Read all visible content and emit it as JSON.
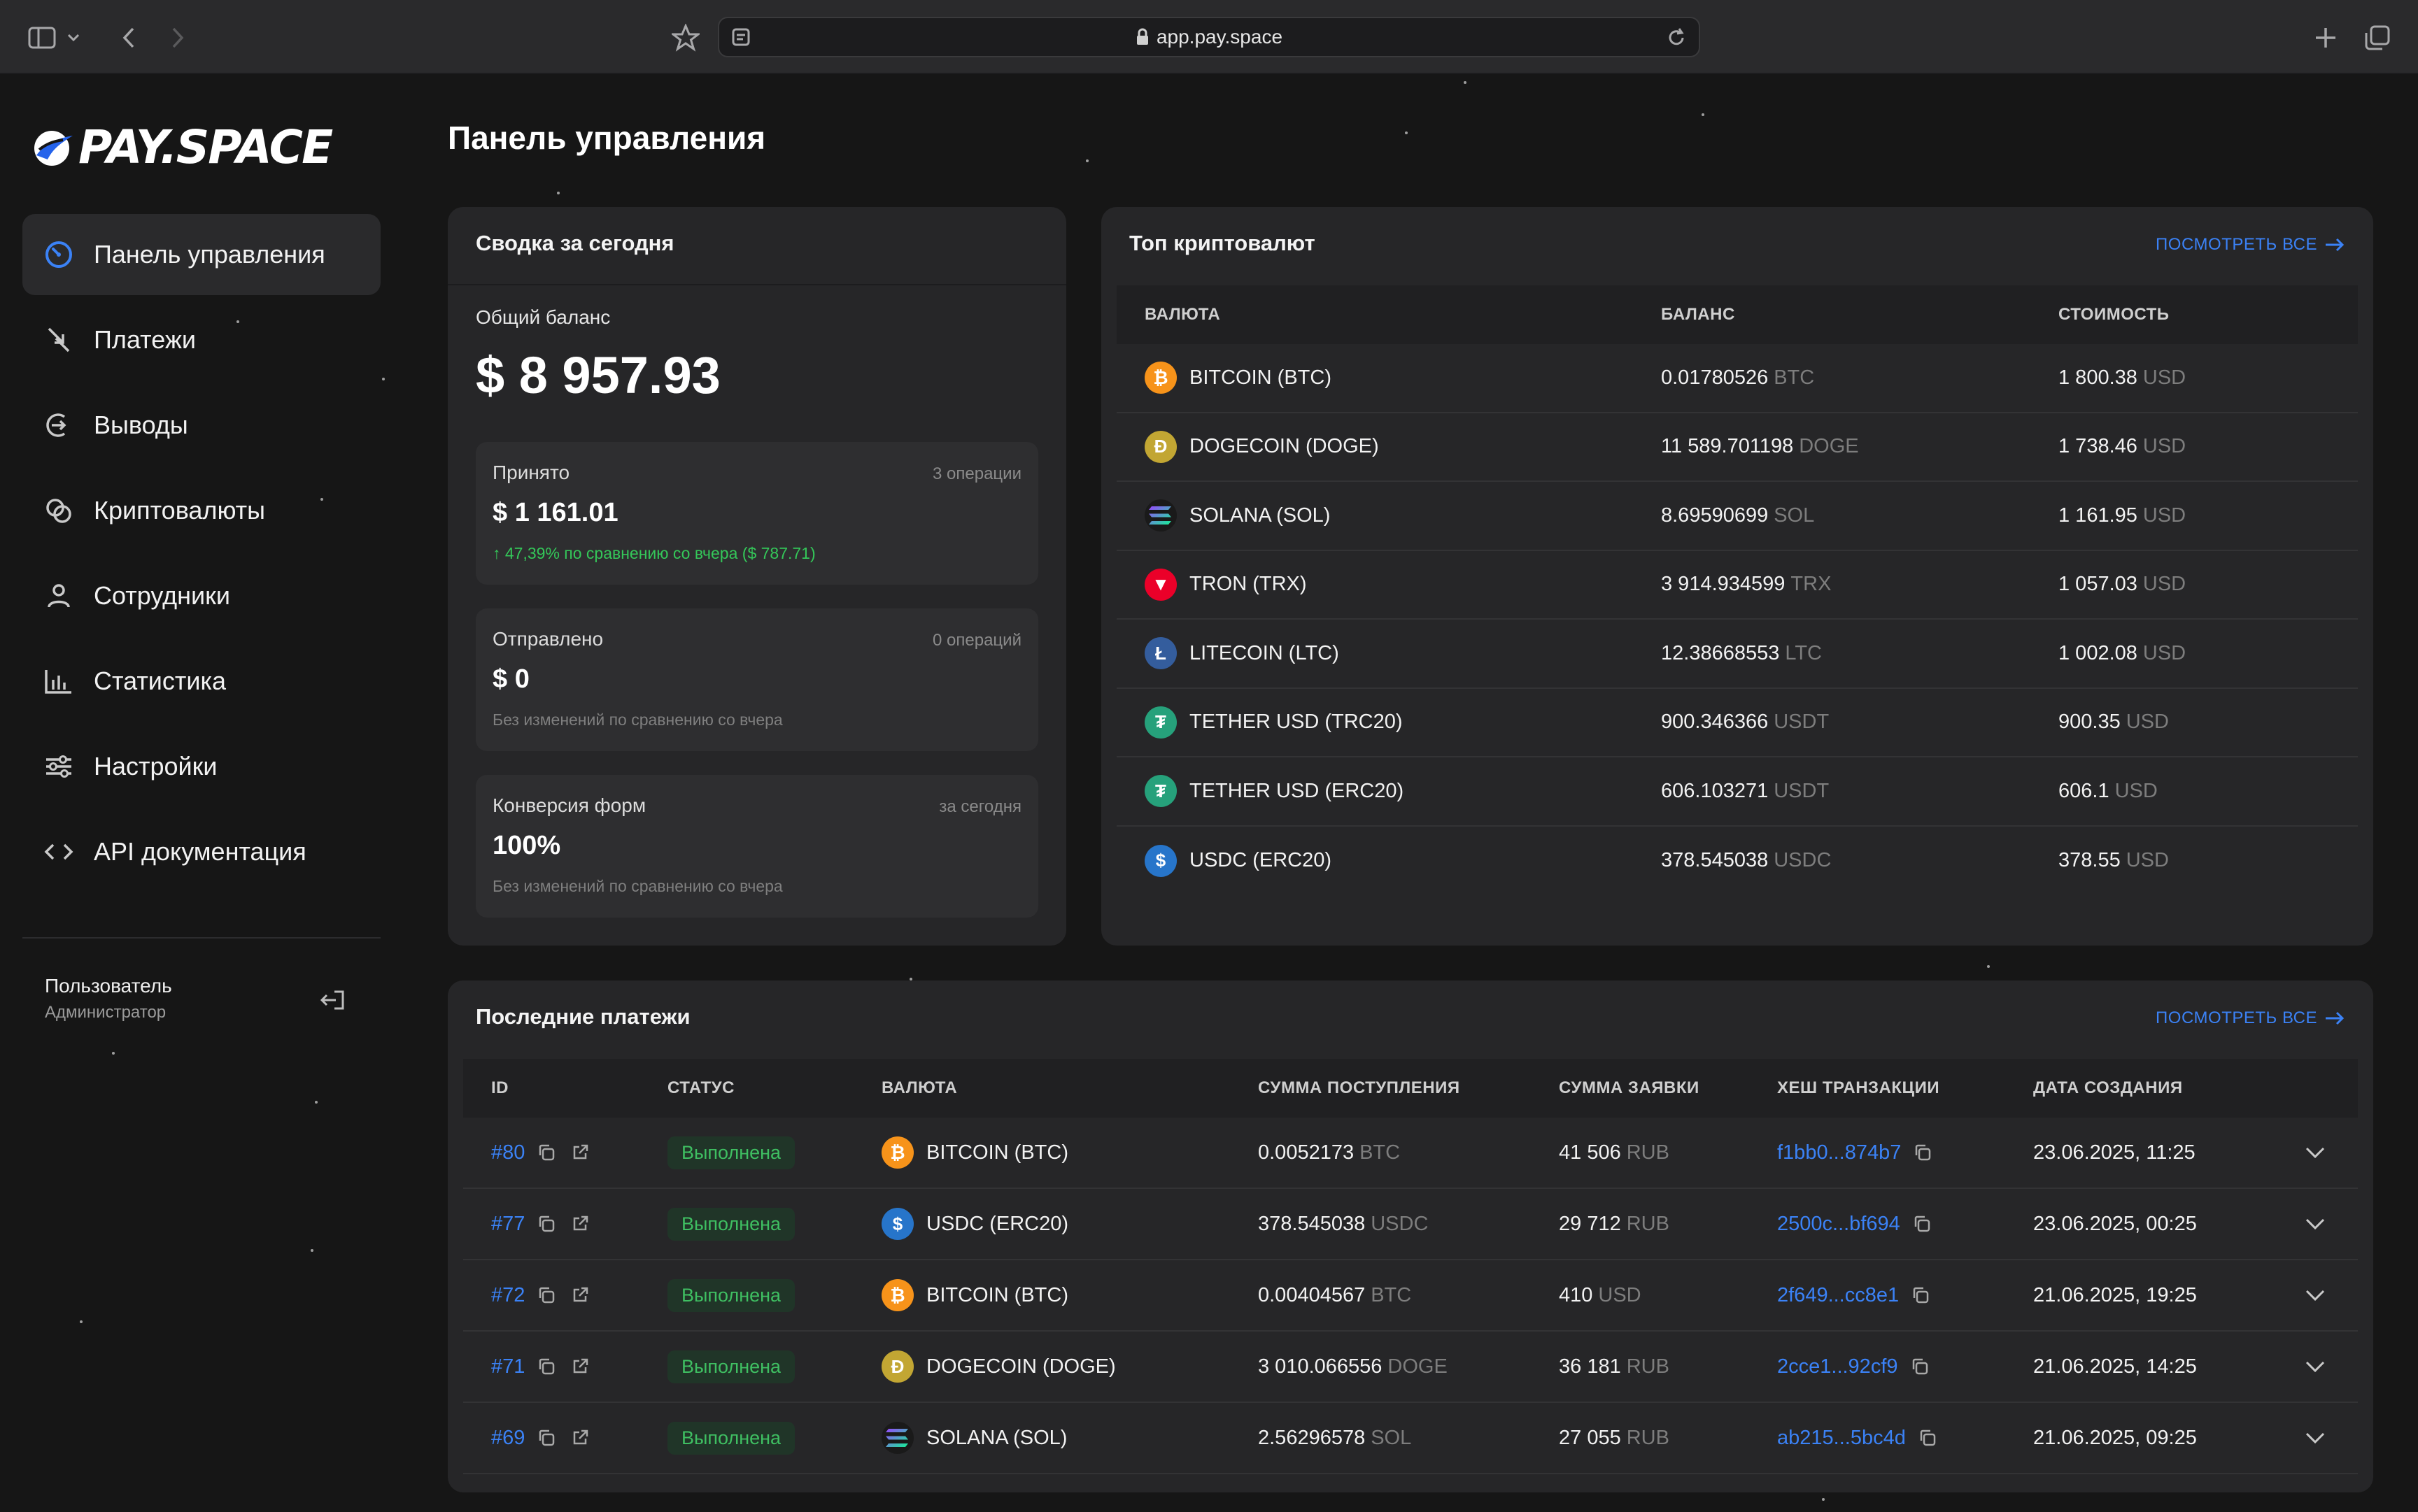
{
  "browser": {
    "url": "app.pay.space"
  },
  "brand": {
    "logo_text": "PAY.SPACE",
    "accent": "#3b82f6",
    "success": "#3fbf62"
  },
  "sidebar": {
    "items": [
      {
        "label": "Панель управления",
        "icon": "dashboard-icon",
        "active": true
      },
      {
        "label": "Платежи",
        "icon": "payments-arrows-icon"
      },
      {
        "label": "Выводы",
        "icon": "withdraw-icon"
      },
      {
        "label": "Криптовалюты",
        "icon": "crypto-coins-icon"
      },
      {
        "label": "Сотрудники",
        "icon": "user-icon"
      },
      {
        "label": "Статистика",
        "icon": "bar-chart-icon"
      },
      {
        "label": "Настройки",
        "icon": "sliders-icon"
      },
      {
        "label": "API документация",
        "icon": "code-icon"
      }
    ],
    "user": {
      "name": "Пользователь",
      "role": "Администратор"
    }
  },
  "page": {
    "title": "Панель управления"
  },
  "summary": {
    "title": "Сводка за сегодня",
    "balance_label": "Общий баланс",
    "balance_value": "$ 8 957.93",
    "stats": [
      {
        "label": "Принято",
        "right": "3 операции",
        "value": "$ 1 161.01",
        "note": "↑ 47,39% по сравнению со вчера ($ 787.71)",
        "note_type": "up"
      },
      {
        "label": "Отправлено",
        "right": "0 операций",
        "value": "$ 0",
        "note": "Без изменений по сравнению со вчера",
        "note_type": "neutral"
      },
      {
        "label": "Конверсия форм",
        "right": "за сегодня",
        "value": "100%",
        "note": "Без изменений по сравнению со вчера",
        "note_type": "neutral"
      }
    ]
  },
  "top_crypto": {
    "title": "Топ криптовалют",
    "view_all": "ПОСМОТРЕТЬ ВСЕ",
    "columns": [
      "ВАЛЮТА",
      "БАЛАНС",
      "СТОИМОСТЬ"
    ],
    "rows": [
      {
        "coin": "BITCOIN (BTC)",
        "icon": "bitcoin-icon",
        "color": "#f7931a",
        "glyph": "₿",
        "balance": "0.01780526",
        "balance_unit": "BTC",
        "value": "1 800.38",
        "value_unit": "USD"
      },
      {
        "coin": "DOGECOIN (DOGE)",
        "icon": "dogecoin-icon",
        "color": "#c2a633",
        "glyph": "Ð",
        "balance": "11 589.701198",
        "balance_unit": "DOGE",
        "value": "1 738.46",
        "value_unit": "USD"
      },
      {
        "coin": "SOLANA (SOL)",
        "icon": "solana-icon",
        "color": "solana",
        "glyph": "",
        "balance": "8.69590699",
        "balance_unit": "SOL",
        "value": "1 161.95",
        "value_unit": "USD"
      },
      {
        "coin": "TRON (TRX)",
        "icon": "tron-icon",
        "color": "#eb0029",
        "glyph": "▼",
        "balance": "3 914.934599",
        "balance_unit": "TRX",
        "value": "1 057.03",
        "value_unit": "USD"
      },
      {
        "coin": "LITECOIN (LTC)",
        "icon": "litecoin-icon",
        "color": "#345d9d",
        "glyph": "Ł",
        "balance": "12.38668553",
        "balance_unit": "LTC",
        "value": "1 002.08",
        "value_unit": "USD"
      },
      {
        "coin": "TETHER USD (TRC20)",
        "icon": "tether-icon",
        "color": "#26a17b",
        "glyph": "₮",
        "balance": "900.346366",
        "balance_unit": "USDT",
        "value": "900.35",
        "value_unit": "USD"
      },
      {
        "coin": "TETHER USD (ERC20)",
        "icon": "tether-icon",
        "color": "#26a17b",
        "glyph": "₮",
        "balance": "606.103271",
        "balance_unit": "USDT",
        "value": "606.1",
        "value_unit": "USD"
      },
      {
        "coin": "USDC (ERC20)",
        "icon": "usdc-icon",
        "color": "#2775ca",
        "glyph": "$",
        "balance": "378.545038",
        "balance_unit": "USDC",
        "value": "378.55",
        "value_unit": "USD"
      }
    ]
  },
  "payments": {
    "title": "Последние платежи",
    "view_all": "ПОСМОТРЕТЬ ВСЕ",
    "columns": [
      "ID",
      "СТАТУС",
      "ВАЛЮТА",
      "СУММА ПОСТУПЛЕНИЯ",
      "СУММА ЗАЯВКИ",
      "ХЕШ ТРАНЗАКЦИИ",
      "ДАТА СОЗДАНИЯ"
    ],
    "rows": [
      {
        "id": "#80",
        "status": "Выполнена",
        "coin": "BITCOIN (BTC)",
        "icon": "bitcoin-icon",
        "color": "#f7931a",
        "glyph": "₿",
        "amount": "0.0052173",
        "amount_unit": "BTC",
        "request": "41 506",
        "request_unit": "RUB",
        "hash": "f1bb0...874b7",
        "date": "23.06.2025, 11:25"
      },
      {
        "id": "#77",
        "status": "Выполнена",
        "coin": "USDC (ERC20)",
        "icon": "usdc-icon",
        "color": "#2775ca",
        "glyph": "$",
        "amount": "378.545038",
        "amount_unit": "USDC",
        "request": "29 712",
        "request_unit": "RUB",
        "hash": "2500c...bf694",
        "date": "23.06.2025, 00:25"
      },
      {
        "id": "#72",
        "status": "Выполнена",
        "coin": "BITCOIN (BTC)",
        "icon": "bitcoin-icon",
        "color": "#f7931a",
        "glyph": "₿",
        "amount": "0.00404567",
        "amount_unit": "BTC",
        "request": "410",
        "request_unit": "USD",
        "hash": "2f649...cc8e1",
        "date": "21.06.2025, 19:25"
      },
      {
        "id": "#71",
        "status": "Выполнена",
        "coin": "DOGECOIN (DOGE)",
        "icon": "dogecoin-icon",
        "color": "#c2a633",
        "glyph": "Ð",
        "amount": "3 010.066556",
        "amount_unit": "DOGE",
        "request": "36 181",
        "request_unit": "RUB",
        "hash": "2cce1...92cf9",
        "date": "21.06.2025, 14:25"
      },
      {
        "id": "#69",
        "status": "Выполнена",
        "coin": "SOLANA (SOL)",
        "icon": "solana-icon",
        "color": "solana",
        "glyph": "",
        "amount": "2.56296578",
        "amount_unit": "SOL",
        "request": "27 055",
        "request_unit": "RUB",
        "hash": "ab215...5bc4d",
        "date": "21.06.2025, 09:25"
      }
    ]
  }
}
